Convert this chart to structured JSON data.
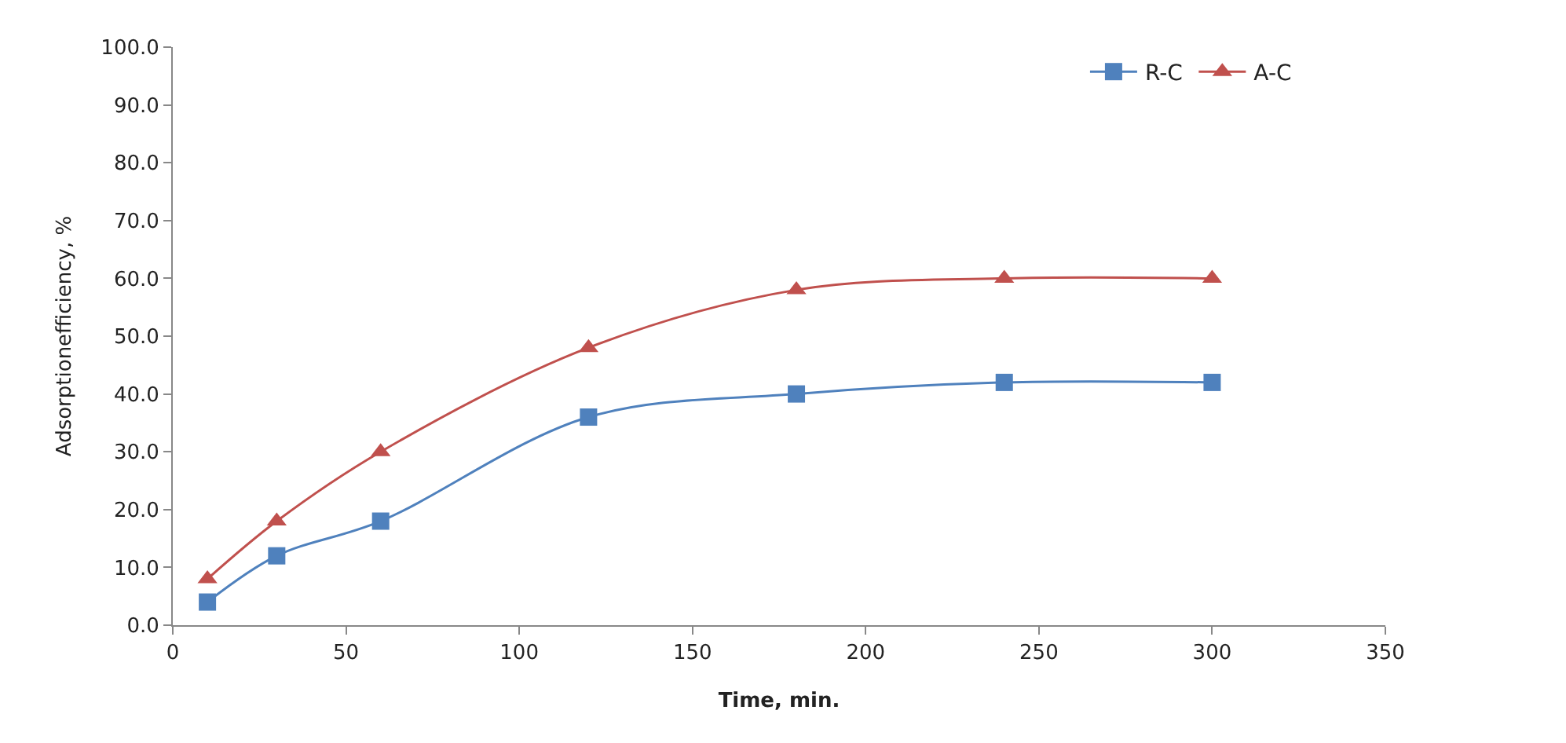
{
  "chart_data": {
    "type": "line",
    "xlabel": "Time, min.",
    "ylabel": "Adsorptionefficiency, %",
    "x": [
      10,
      30,
      60,
      120,
      180,
      240,
      300
    ],
    "series": [
      {
        "name": "R-C",
        "color": "#4f81bd",
        "marker": "square",
        "values": [
          4,
          12,
          18,
          36,
          40,
          42,
          42
        ]
      },
      {
        "name": "A-C",
        "color": "#c0504d",
        "marker": "triangle",
        "values": [
          8,
          18,
          30,
          48,
          58,
          60,
          60
        ]
      }
    ],
    "xlim": [
      0,
      350
    ],
    "xticks": [
      0,
      50,
      100,
      150,
      200,
      250,
      300,
      350
    ],
    "ylim": [
      0,
      100
    ],
    "yticks": [
      {
        "value": 0,
        "label": "0.0"
      },
      {
        "value": 10,
        "label": "10.0"
      },
      {
        "value": 20,
        "label": "20.0"
      },
      {
        "value": 30,
        "label": "30.0"
      },
      {
        "value": 40,
        "label": "40.0"
      },
      {
        "value": 50,
        "label": "50.0"
      },
      {
        "value": 60,
        "label": "60.0"
      },
      {
        "value": 70,
        "label": "70.0"
      },
      {
        "value": 80,
        "label": "80.0"
      },
      {
        "value": 90,
        "label": "90.0"
      },
      {
        "value": 100,
        "label": "100.0"
      }
    ],
    "legend": "top right",
    "line_style": "solid"
  }
}
